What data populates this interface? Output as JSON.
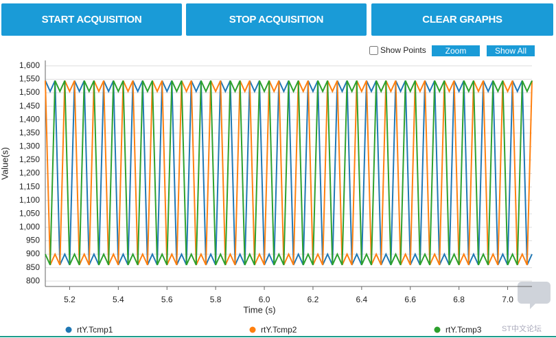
{
  "buttons": [
    "START ACQUISITION",
    "STOP ACQUISITION",
    "CLEAR GRAPHS"
  ],
  "controls": {
    "show_points": "Show Points",
    "zoom": "Zoom",
    "show_all": "Show All"
  },
  "watermark": "ST中文论坛",
  "chart_data": {
    "type": "line",
    "xlabel": "Time (s)",
    "ylabel": "Value(s)",
    "grid": true,
    "xlim": [
      5.1,
      7.1
    ],
    "xticks": [
      5.2,
      5.4,
      5.6,
      5.8,
      {
        "value": 6,
        "label": "6.0"
      },
      6.2,
      6.4,
      6.6,
      6.8,
      {
        "value": 7,
        "label": "7.0"
      }
    ],
    "ylim": [
      780,
      1620
    ],
    "yticks": [
      800,
      850,
      900,
      950,
      {
        "value": 1000,
        "label": "1,000"
      },
      {
        "value": 1050,
        "label": "1,050"
      },
      {
        "value": 1100,
        "label": "1,100"
      },
      {
        "value": 1150,
        "label": "1,150"
      },
      {
        "value": 1200,
        "label": "1,200"
      },
      {
        "value": 1250,
        "label": "1,250"
      },
      {
        "value": 1300,
        "label": "1,300"
      },
      {
        "value": 1350,
        "label": "1,350"
      },
      {
        "value": 1400,
        "label": "1,400"
      },
      {
        "value": 1450,
        "label": "1,450"
      },
      {
        "value": 1500,
        "label": "1,500"
      },
      {
        "value": 1550,
        "label": "1,550"
      },
      {
        "value": 1600,
        "label": "1,600"
      }
    ],
    "x": [
      5.1,
      5.12,
      5.14,
      5.16,
      5.18,
      5.2,
      5.22,
      5.24,
      5.26,
      5.28,
      5.3,
      5.32,
      5.34,
      5.36,
      5.38,
      5.4,
      5.42,
      5.44,
      5.46,
      5.48,
      5.5,
      5.52,
      5.54,
      5.56,
      5.58,
      5.6,
      5.62,
      5.64,
      5.66,
      5.68,
      5.7,
      5.72,
      5.74,
      5.76,
      5.78,
      5.8,
      5.82,
      5.84,
      5.86,
      5.88,
      5.9,
      5.92,
      5.94,
      5.96,
      5.98,
      6.0,
      6.02,
      6.04,
      6.06,
      6.08,
      6.1,
      6.12,
      6.14,
      6.16,
      6.18,
      6.2,
      6.22,
      6.24,
      6.26,
      6.28,
      6.3,
      6.32,
      6.34,
      6.36,
      6.38,
      6.4,
      6.42,
      6.44,
      6.46,
      6.48,
      6.5,
      6.52,
      6.54,
      6.56,
      6.58,
      6.6,
      6.62,
      6.64,
      6.66,
      6.68,
      6.7,
      6.72,
      6.74,
      6.76,
      6.78,
      6.8,
      6.82,
      6.84,
      6.86,
      6.88,
      6.9,
      6.92,
      6.94,
      6.96,
      6.98,
      7.0,
      7.02,
      7.04,
      7.06,
      7.08,
      7.1
    ],
    "series": [
      {
        "name": "rtY.Tcmp1",
        "color": "#1f77b4",
        "values": [
          1545,
          1505,
          1545,
          860,
          900,
          860,
          1545,
          1505,
          1545,
          860,
          900,
          860,
          1545,
          1505,
          1545,
          860,
          900,
          860,
          1545,
          1505,
          1545,
          860,
          900,
          860,
          1545,
          1505,
          1545,
          860,
          900,
          860,
          1545,
          1505,
          1545,
          860,
          900,
          860,
          1545,
          1505,
          1545,
          860,
          900,
          860,
          1545,
          1505,
          1545,
          860,
          900,
          860,
          1545,
          1505,
          1545,
          860,
          900,
          860,
          1545,
          1505,
          1545,
          860,
          900,
          860,
          1545,
          1505,
          1545,
          860,
          900,
          860,
          1545,
          1505,
          1545,
          860,
          900,
          860,
          1545,
          1505,
          1545,
          860,
          900,
          860,
          1545,
          1505,
          1545,
          860,
          900,
          860,
          1545,
          1505,
          1545,
          860,
          900,
          860,
          1545,
          1505,
          1545,
          860,
          900,
          860,
          1545,
          1505,
          1545,
          860,
          900
        ]
      },
      {
        "name": "rtY.Tcmp2",
        "color": "#ff7f0e",
        "values": [
          1545,
          860,
          900,
          860,
          1545,
          1505,
          1545,
          860,
          900,
          860,
          1545,
          1505,
          1545,
          860,
          900,
          860,
          1545,
          1505,
          1545,
          860,
          900,
          860,
          1545,
          1505,
          1545,
          860,
          900,
          860,
          1545,
          1505,
          1545,
          860,
          900,
          860,
          1545,
          1505,
          1545,
          860,
          900,
          860,
          1545,
          1505,
          1545,
          860,
          900,
          860,
          1545,
          1505,
          1545,
          860,
          900,
          860,
          1545,
          1505,
          1545,
          860,
          900,
          860,
          1545,
          1505,
          1545,
          860,
          900,
          860,
          1545,
          1505,
          1545,
          860,
          900,
          860,
          1545,
          1505,
          1545,
          860,
          900,
          860,
          1545,
          1505,
          1545,
          860,
          900,
          860,
          1545,
          1505,
          1545,
          860,
          900,
          860,
          1545,
          1505,
          1545,
          860,
          900,
          860,
          1545,
          1505,
          1545,
          860,
          900,
          860,
          1545
        ]
      },
      {
        "name": "rtY.Tcmp3",
        "color": "#2ca02c",
        "values": [
          900,
          860,
          1545,
          1505,
          1545,
          860,
          900,
          860,
          1545,
          1505,
          1545,
          860,
          900,
          860,
          1545,
          1505,
          1545,
          860,
          900,
          860,
          1545,
          1505,
          1545,
          860,
          900,
          860,
          1545,
          1505,
          1545,
          860,
          900,
          860,
          1545,
          1505,
          1545,
          860,
          900,
          860,
          1545,
          1505,
          1545,
          860,
          900,
          860,
          1545,
          1505,
          1545,
          860,
          900,
          860,
          1545,
          1505,
          1545,
          860,
          900,
          860,
          1545,
          1505,
          1545,
          860,
          900,
          860,
          1545,
          1505,
          1545,
          860,
          900,
          860,
          1545,
          1505,
          1545,
          860,
          900,
          860,
          1545,
          1505,
          1545,
          860,
          900,
          860,
          1545,
          1505,
          1545,
          860,
          900,
          860,
          1545,
          1505,
          1545,
          860,
          900,
          860,
          1545,
          1505,
          1545,
          860,
          900,
          860,
          1545,
          1505,
          1545
        ]
      }
    ]
  }
}
